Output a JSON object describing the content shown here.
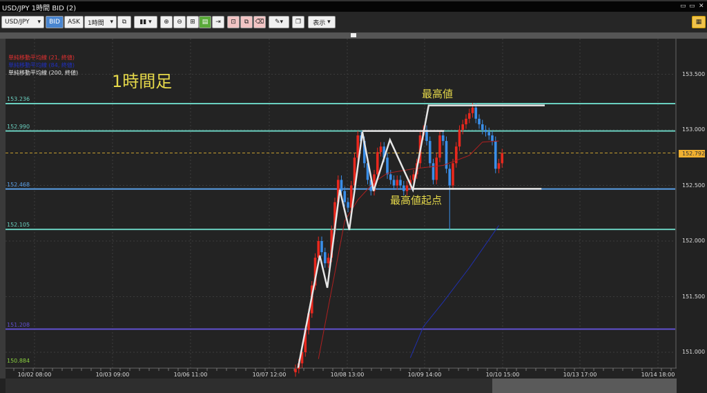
{
  "window": {
    "title": "USD/JPY 1時間 BID (2)"
  },
  "toolbar": {
    "symbol": "USD/JPY",
    "bid": "BID",
    "ask": "ASK",
    "timeframe": "1時間",
    "display": "表示"
  },
  "legend": [
    {
      "label": "単純移動平均線 (21, 終値)",
      "color": "#e03030"
    },
    {
      "label": "単純移動平均線 (84, 終値)",
      "color": "#2030c0"
    },
    {
      "label": "単純移動平均線 (200, 終値)",
      "color": "#e8e8e8"
    }
  ],
  "annotations": {
    "title": "1時間足",
    "high": "最高値",
    "high_origin": "最高値起点"
  },
  "colors": {
    "up": "#e8281e",
    "down": "#3a8ee8",
    "grid": "#444",
    "bg": "#232323"
  },
  "chart_data": {
    "type": "candlestick",
    "symbol": "USD/JPY",
    "timeframe": "1H",
    "ylim": [
      150.86,
      153.8
    ],
    "y_ticks": [
      "153.500",
      "153.000",
      "152.500",
      "152.000",
      "151.500",
      "151.000"
    ],
    "y_tick_values": [
      153.5,
      153.0,
      152.5,
      152.0,
      151.5,
      151.0
    ],
    "x_ticks": [
      "10/02 08:00",
      "10/03 09:00",
      "10/06 11:00",
      "10/07 12:00",
      "10/08 13:00",
      "10/09 14:00",
      "10/10 15:00",
      "10/13 17:00",
      "10/14 18:00"
    ],
    "current_price": "152.792",
    "closes": [
      150.85,
      150.9,
      151.0,
      151.2,
      151.35,
      151.6,
      151.85,
      152.0,
      151.9,
      151.8,
      151.85,
      152.1,
      152.35,
      152.55,
      152.45,
      152.35,
      152.3,
      152.5,
      152.75,
      152.95,
      152.9,
      152.7,
      152.55,
      152.45,
      152.6,
      152.8,
      152.85,
      152.75,
      152.6,
      152.55,
      152.5,
      152.55,
      152.5,
      152.45,
      152.5,
      152.55,
      152.6,
      152.7,
      152.95,
      153.0,
      152.9,
      152.7,
      152.55,
      152.75,
      152.95,
      152.9,
      152.65,
      152.5,
      152.7,
      152.85,
      153.0,
      153.05,
      153.1,
      153.15,
      153.2,
      153.1,
      153.05,
      153.0,
      152.98,
      152.95,
      152.9,
      152.65,
      152.7,
      152.79
    ],
    "levels": [
      {
        "label": "153.236",
        "value": 153.236,
        "color": "#6ad0c0"
      },
      {
        "label": "152.990",
        "value": 152.99,
        "color": "#6ad0c0"
      },
      {
        "label": "152.468",
        "value": 152.468,
        "color": "#5aa0e8"
      },
      {
        "label": "152.105",
        "value": 152.105,
        "color": "#6ad0c0"
      },
      {
        "label": "151.208",
        "value": 151.208,
        "color": "#6050d0"
      },
      {
        "label": "150.884",
        "value": 150.884,
        "color": "#8ad040"
      }
    ],
    "sma21": [
      [
        7,
        150.94
      ],
      [
        11,
        151.56
      ],
      [
        15,
        152.18
      ],
      [
        19,
        152.37
      ],
      [
        24,
        152.53
      ],
      [
        28,
        152.61
      ],
      [
        36,
        152.65
      ],
      [
        45,
        152.68
      ],
      [
        53,
        152.77
      ],
      [
        57,
        152.89
      ],
      [
        62,
        152.9
      ]
    ],
    "sma84": [
      [
        35,
        150.95
      ],
      [
        39,
        151.23
      ],
      [
        45,
        151.45
      ],
      [
        53,
        151.76
      ],
      [
        62,
        152.14
      ]
    ],
    "zigzag": [
      [
        0.8,
        150.86
      ],
      [
        7.4,
        151.87
      ],
      [
        9.7,
        151.58
      ],
      [
        13.5,
        152.46
      ],
      [
        16.4,
        152.1
      ],
      [
        20.4,
        152.98
      ],
      [
        23.8,
        152.45
      ],
      [
        28.8,
        152.91
      ],
      [
        35.8,
        152.46
      ],
      [
        40.6,
        153.22
      ],
      [
        76,
        153.22
      ]
    ],
    "hlines": [
      [
        [
          20.4,
          152.99
        ],
        [
          45.3,
          152.99
        ]
      ],
      [
        [
          35.8,
          152.47
        ],
        [
          75,
          152.47
        ]
      ]
    ]
  }
}
